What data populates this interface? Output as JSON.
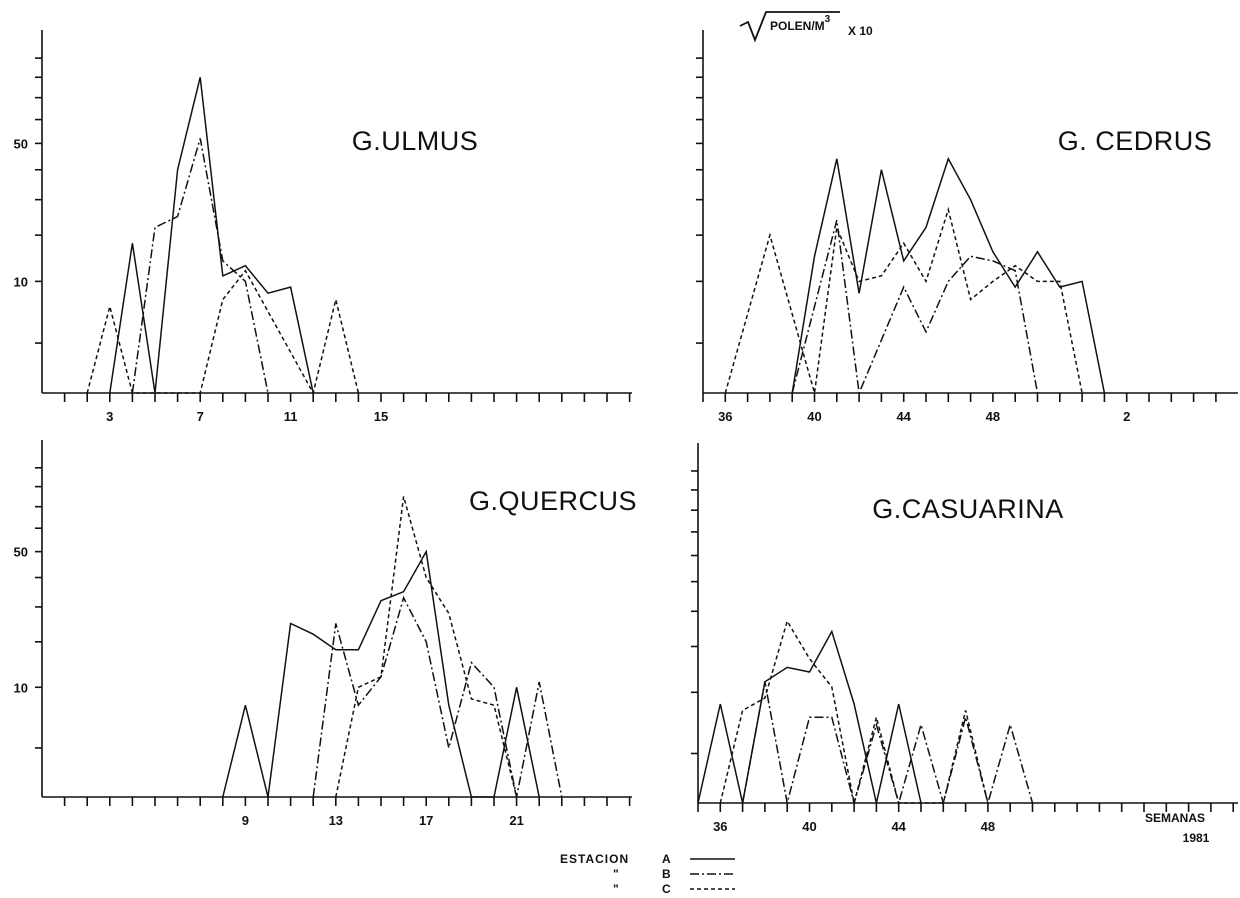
{
  "figure": {
    "units": "POLEN/M",
    "units_sup": "3",
    "units_factor": "X 10",
    "xaxis_label": "SEMANAS",
    "xaxis_year": "1981"
  },
  "legend": {
    "prefix": "ESTACION",
    "ditto": "\"",
    "entries": [
      {
        "key": "A",
        "style": "solid"
      },
      {
        "key": "B",
        "style": "dash-dot"
      },
      {
        "key": "C",
        "style": "dashed"
      }
    ]
  },
  "chart_data": [
    {
      "type": "line",
      "title": "G.ULMUS",
      "scale": "square-root",
      "xlabel": "",
      "ylabel": "",
      "xlim": [
        1,
        27
      ],
      "ylim": [
        0,
        100
      ],
      "x_ticks": [
        3,
        7,
        11,
        15
      ],
      "y_ticks": [
        10,
        50
      ],
      "series": [
        {
          "name": "A",
          "x": [
            3,
            4,
            5,
            6,
            7,
            8,
            9,
            10,
            11,
            12
          ],
          "y": [
            0,
            18,
            0,
            40,
            80,
            11,
            13,
            8,
            9,
            0
          ]
        },
        {
          "name": "B",
          "x": [
            4,
            5,
            6,
            7,
            8,
            9,
            10
          ],
          "y": [
            0,
            22,
            25,
            52,
            14,
            10,
            0
          ]
        },
        {
          "name": "C",
          "x": [
            2,
            3,
            4,
            6,
            7,
            8,
            9,
            12,
            13,
            14
          ],
          "y": [
            0,
            6,
            0,
            0,
            0,
            7,
            12,
            0,
            7,
            0
          ]
        }
      ]
    },
    {
      "type": "line",
      "title": "G. CEDRUS",
      "scale": "square-root",
      "xlabel": "",
      "ylabel": "",
      "x_ticks": [
        36,
        40,
        44,
        48,
        2
      ],
      "y_ticks": [],
      "series": [
        {
          "name": "A",
          "x": [
            "39",
            "40",
            "41",
            "42",
            "43",
            "44",
            "45",
            "46",
            "47",
            "48",
            "49",
            "50",
            "51",
            "52",
            "1"
          ],
          "y": [
            0,
            15,
            44,
            8,
            40,
            14,
            22,
            44,
            30,
            16,
            9,
            16,
            9,
            10,
            0
          ]
        },
        {
          "name": "B",
          "x": [
            "39",
            "41",
            "42",
            "44",
            "45",
            "46",
            "47",
            "48",
            "49",
            "50"
          ],
          "y": [
            0,
            24,
            0,
            9,
            3,
            10,
            15,
            14,
            12,
            0
          ]
        },
        {
          "name": "C",
          "x": [
            "36",
            "38",
            "40",
            "41",
            "42",
            "43",
            "44",
            "45",
            "46",
            "47",
            "48",
            "49",
            "50",
            "51",
            "52"
          ],
          "y": [
            0,
            20,
            0,
            22,
            10,
            11,
            18,
            10,
            27,
            7,
            10,
            13,
            10,
            10,
            0
          ]
        }
      ]
    },
    {
      "type": "line",
      "title": "G.QUERCUS",
      "scale": "square-root",
      "xlabel": "",
      "ylabel": "",
      "xlim": [
        1,
        26
      ],
      "ylim": [
        0,
        100
      ],
      "x_ticks": [
        9,
        13,
        17,
        21
      ],
      "y_ticks": [
        10,
        50
      ],
      "series": [
        {
          "name": "A",
          "x": [
            8,
            9,
            10,
            11,
            12,
            13,
            14,
            15,
            16,
            17,
            18,
            19,
            20,
            21,
            22
          ],
          "y": [
            0,
            7,
            0,
            25,
            22,
            18,
            18,
            32,
            35,
            50,
            7,
            0,
            0,
            10,
            0
          ]
        },
        {
          "name": "B",
          "x": [
            12,
            13,
            14,
            15,
            16,
            17,
            18,
            19,
            20,
            21,
            22,
            23
          ],
          "y": [
            0,
            25,
            7,
            12,
            33,
            20,
            2,
            15,
            10,
            0,
            11,
            0
          ]
        },
        {
          "name": "C",
          "x": [
            13,
            14,
            15,
            16,
            17,
            18,
            19,
            20,
            21
          ],
          "y": [
            0,
            10,
            12,
            75,
            40,
            28,
            8,
            7,
            0
          ]
        }
      ]
    },
    {
      "type": "line",
      "title": "G.CASUARINA",
      "scale": "square-root",
      "xlabel": "SEMANAS",
      "ylabel": "",
      "x_ticks": [
        36,
        40,
        44,
        48
      ],
      "y_ticks": [],
      "series": [
        {
          "name": "A",
          "x": [
            "35",
            "36",
            "37",
            "38",
            "39",
            "40",
            "41",
            "42",
            "43",
            "44",
            "45"
          ],
          "y": [
            0,
            8,
            0,
            12,
            15,
            14,
            24,
            8,
            0,
            8,
            0
          ]
        },
        {
          "name": "B",
          "x": [
            "37",
            "38",
            "39",
            "40",
            "41",
            "42",
            "43",
            "44",
            "45",
            "46",
            "47",
            "48",
            "49",
            "50"
          ],
          "y": [
            0,
            12,
            0,
            6,
            6,
            0,
            5,
            0,
            5,
            0,
            6,
            0,
            5,
            0
          ]
        },
        {
          "name": "C",
          "x": [
            "36",
            "37",
            "38",
            "39",
            "40",
            "41",
            "42",
            "43",
            "44",
            "45",
            "46",
            "47",
            "48"
          ],
          "y": [
            0,
            7,
            9,
            27,
            17,
            11,
            0,
            6,
            0,
            0,
            0,
            7,
            0
          ]
        }
      ]
    }
  ]
}
